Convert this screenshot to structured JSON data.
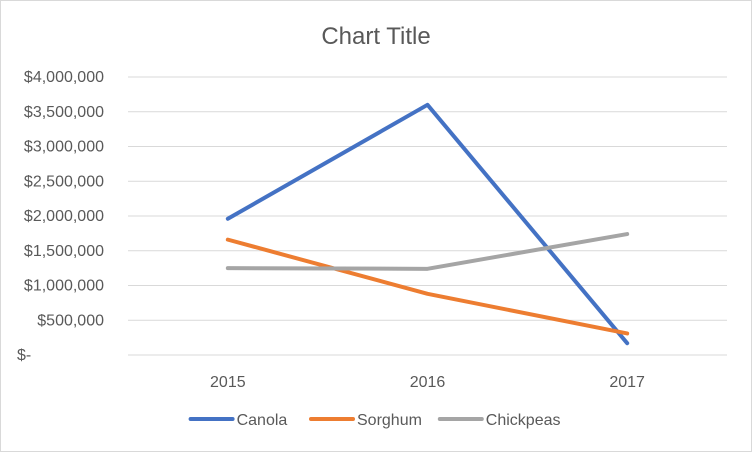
{
  "chart_data": {
    "type": "line",
    "title": "Chart Title",
    "xlabel": "",
    "ylabel": "",
    "categories": [
      "2015",
      "2016",
      "2017"
    ],
    "series": [
      {
        "name": "Canola",
        "values": [
          1960000,
          3600000,
          170000
        ],
        "color": "#4472c4"
      },
      {
        "name": "Sorghum",
        "values": [
          1660000,
          880000,
          310000
        ],
        "color": "#ed7d31"
      },
      {
        "name": "Chickpeas",
        "values": [
          1250000,
          1240000,
          1740000
        ],
        "color": "#a5a5a5"
      }
    ],
    "ylim": [
      0,
      4000000
    ],
    "y_ticks": [
      {
        "value": 0,
        "label": "$-"
      },
      {
        "value": 500000,
        "label": "$500,000"
      },
      {
        "value": 1000000,
        "label": "$1,000,000"
      },
      {
        "value": 1500000,
        "label": "$1,500,000"
      },
      {
        "value": 2000000,
        "label": "$2,000,000"
      },
      {
        "value": 2500000,
        "label": "$2,500,000"
      },
      {
        "value": 3000000,
        "label": "$3,000,000"
      },
      {
        "value": 3500000,
        "label": "$3,500,000"
      },
      {
        "value": 4000000,
        "label": "$4,000,000"
      }
    ],
    "grid": true,
    "legend_position": "bottom"
  }
}
